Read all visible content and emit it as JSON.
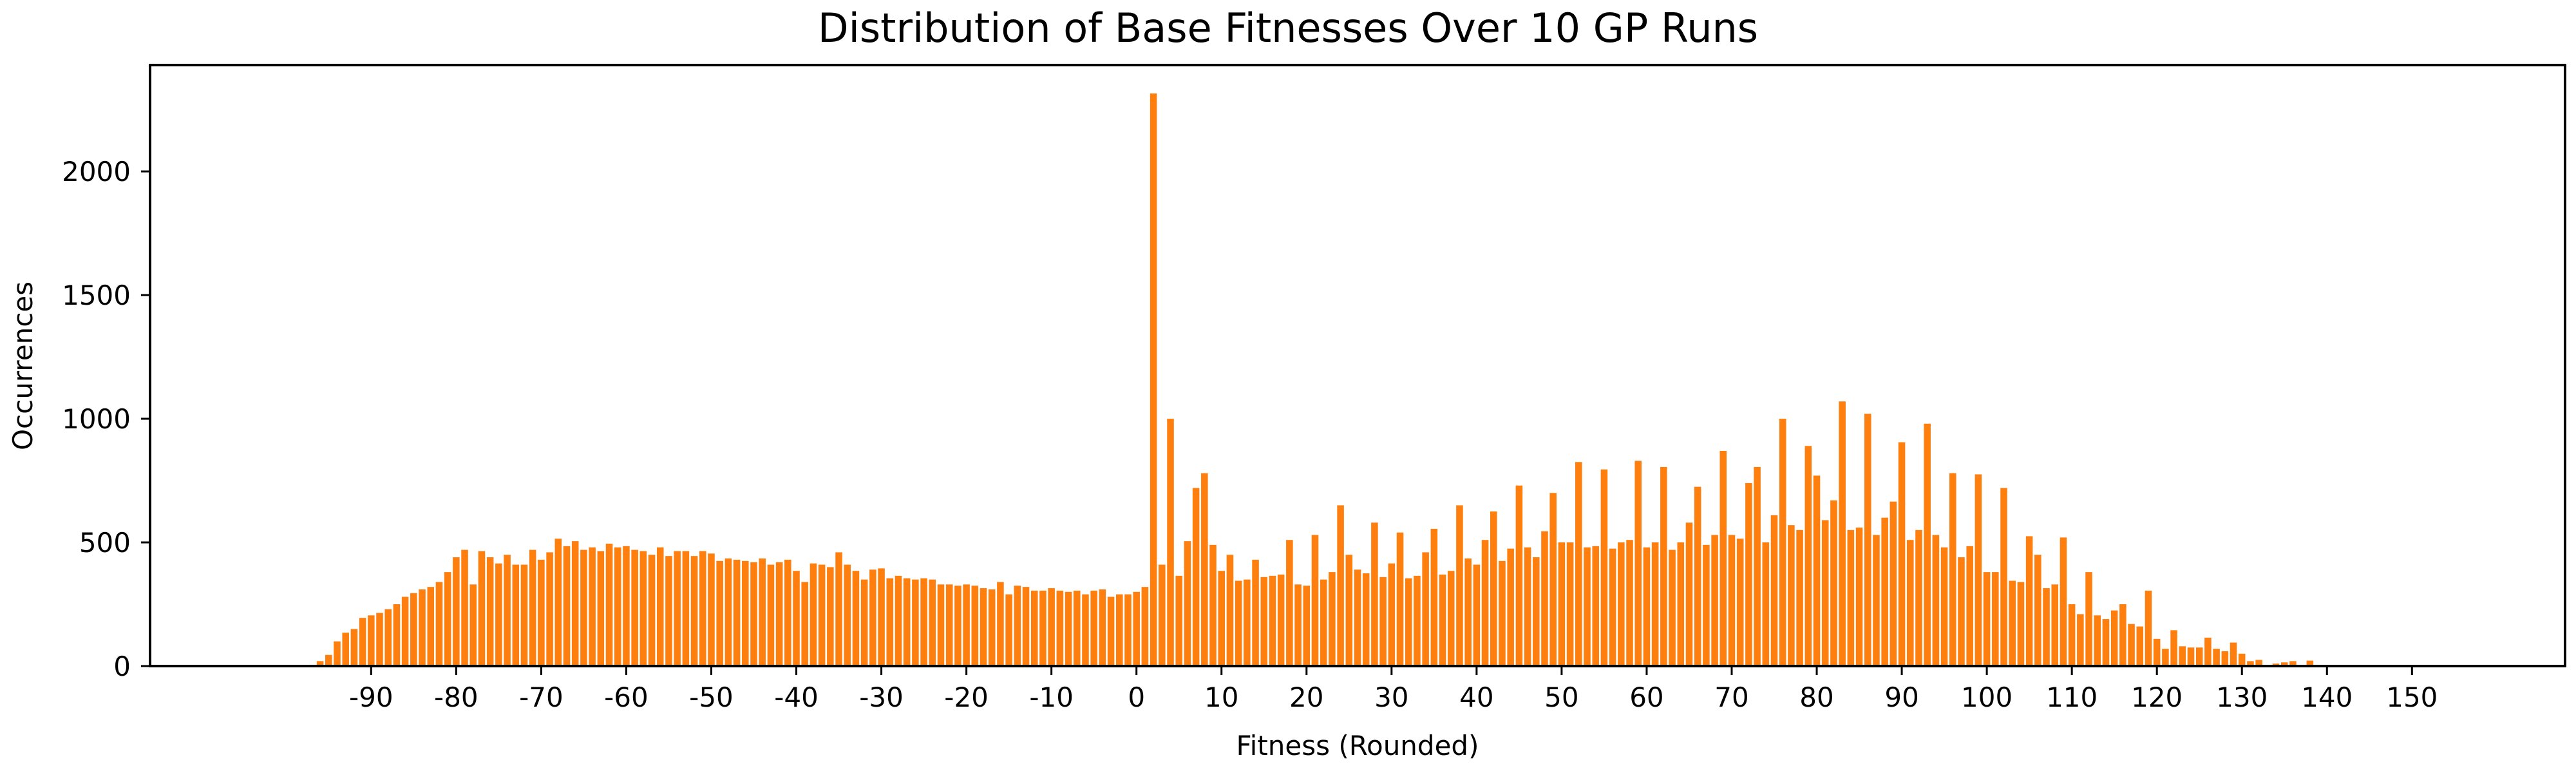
{
  "chart_data": {
    "type": "bar",
    "title": "Distribution of Base Fitnesses Over 10 GP Runs",
    "xlabel": "Fitness (Rounded)",
    "ylabel": "Occurrences",
    "xlim": [
      -116,
      168
    ],
    "ylim": [
      0,
      2430
    ],
    "x_ticks": [
      -90,
      -80,
      -70,
      -60,
      -50,
      -40,
      -30,
      -20,
      -10,
      0,
      10,
      20,
      30,
      40,
      50,
      60,
      70,
      80,
      90,
      100,
      110,
      120,
      130,
      140,
      150
    ],
    "y_ticks": [
      0,
      500,
      1000,
      1500,
      2000
    ],
    "bar_color": "#ff7f0e",
    "series": [
      {
        "x_start": -97,
        "values": [
          5,
          20,
          45,
          100,
          135,
          150,
          195,
          205,
          215,
          230,
          250,
          280,
          295,
          310,
          320,
          340,
          380,
          440,
          470,
          330,
          465,
          440,
          415,
          450,
          410,
          410,
          470,
          430,
          460,
          515,
          485,
          505,
          470,
          480,
          465,
          495,
          480,
          485,
          470,
          465,
          450,
          480,
          445,
          465,
          465,
          445,
          465,
          455,
          425,
          435,
          430,
          425,
          420,
          435,
          410,
          420,
          430,
          385,
          340,
          415,
          410,
          400,
          460,
          410,
          385,
          350,
          390,
          395,
          355,
          365,
          355,
          350,
          355,
          350,
          330,
          330,
          325,
          330,
          325,
          315,
          310,
          340,
          290,
          325,
          320,
          305,
          305,
          315,
          305,
          300,
          305,
          290,
          305,
          310,
          280,
          290,
          290,
          300,
          320,
          2315,
          410,
          1000,
          365,
          505,
          720,
          780,
          490,
          385,
          450,
          345,
          350,
          430,
          360,
          365,
          370,
          510,
          330,
          325,
          530,
          350,
          380,
          650,
          450,
          390,
          375,
          580,
          360,
          415,
          540,
          355,
          365,
          460,
          555,
          370,
          385,
          650,
          435,
          410,
          510,
          625,
          425,
          475,
          730,
          480,
          440,
          545,
          700,
          500,
          500,
          825,
          480,
          485,
          795,
          475,
          500,
          510,
          830,
          480,
          500,
          805,
          470,
          500,
          580,
          725,
          490,
          530,
          870,
          530,
          515,
          740,
          805,
          500,
          610,
          1000,
          570,
          550,
          890,
          770,
          590,
          670,
          1070,
          550,
          560,
          1020,
          530,
          600,
          665,
          905,
          510,
          550,
          980,
          530,
          480,
          780,
          440,
          485,
          775,
          380,
          380,
          720,
          345,
          340,
          525,
          450,
          315,
          330,
          520,
          250,
          210,
          380,
          205,
          190,
          225,
          250,
          170,
          160,
          305,
          110,
          70,
          145,
          80,
          75,
          75,
          115,
          70,
          60,
          95,
          50,
          20,
          25,
          0,
          10,
          15,
          20,
          5,
          22
        ]
      }
    ]
  }
}
